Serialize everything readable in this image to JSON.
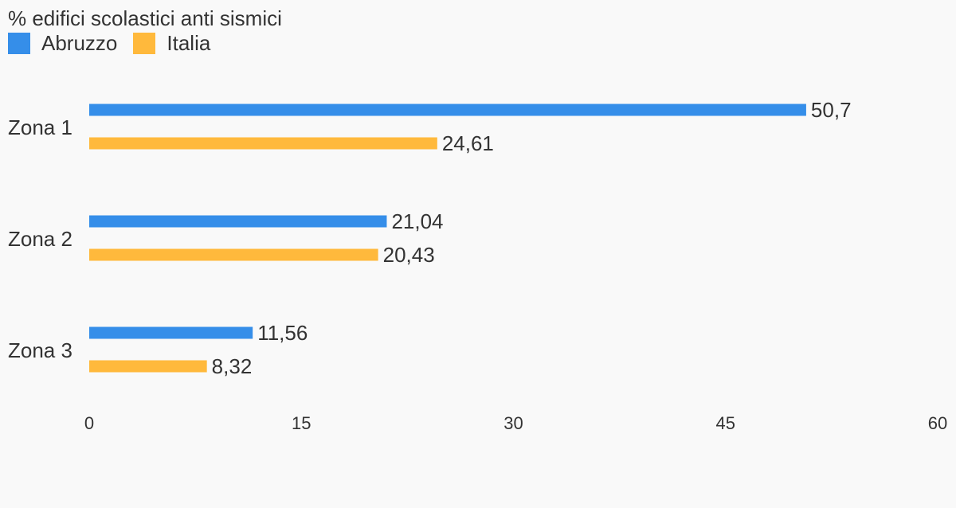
{
  "chart_data": {
    "type": "bar",
    "orientation": "horizontal",
    "title": "% edifici scolastici anti sismici",
    "legend_position": "top-left",
    "grid": false,
    "categories": [
      "Zona 1",
      "Zona 2",
      "Zona 3"
    ],
    "series": [
      {
        "name": "Abruzzo",
        "color": "#358ee9",
        "values": [
          50.7,
          21.04,
          11.56
        ],
        "labels": [
          "50,7",
          "21,04",
          "11,56"
        ]
      },
      {
        "name": "Italia",
        "color": "#ffb93c",
        "values": [
          24.61,
          20.43,
          8.32
        ],
        "labels": [
          "24,61",
          "20,43",
          "8,32"
        ]
      }
    ],
    "xlim": [
      0,
      60
    ],
    "xticks": [
      0,
      15,
      30,
      45,
      60
    ],
    "xtick_labels": [
      "0",
      "15",
      "30",
      "45",
      "60"
    ]
  }
}
